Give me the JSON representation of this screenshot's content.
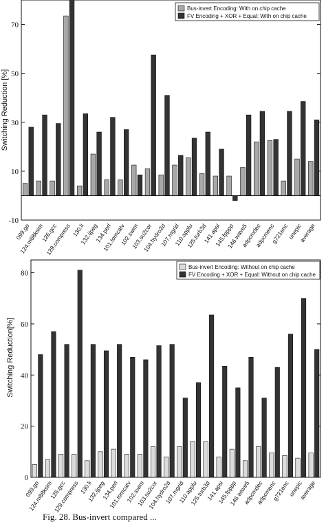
{
  "figure": {
    "caption": "Fig. 28. Bus-invert compared ..."
  },
  "chart_data": [
    {
      "type": "bar",
      "title": "",
      "xlabel": "",
      "ylabel": "Switching Reduction [%]",
      "ylim": [
        -10,
        80
      ],
      "yticks": [
        -10,
        10,
        30,
        50,
        70
      ],
      "grid": false,
      "legend_position": "top-right",
      "categories": [
        "099.go",
        "124.m88ksim",
        "126.gcc",
        "129.compress",
        "130.li",
        "132.ijpeg",
        "134.perl",
        "101.tomcatv",
        "102.swim",
        "103.su2cor",
        "104.hydro2d",
        "107.mgrid",
        "110.applu",
        "125.turb3d",
        "141.apsi",
        "145.fpppp",
        "146.wave5",
        "adpcmdec",
        "adpcmenc",
        "g721enc",
        "unepic",
        "average"
      ],
      "series": [
        {
          "name": "Bus-invert Encoding: With on chip cache",
          "color": "#a8a8a8",
          "values": [
            5,
            6,
            6,
            73.5,
            4,
            17,
            6.5,
            6.5,
            12.5,
            11,
            8.5,
            12.5,
            15.5,
            9,
            8,
            8,
            11.5,
            22,
            22.5,
            6,
            15,
            14
          ]
        },
        {
          "name": "FV Encoding + XOR + Equal: With on chip cache",
          "color": "#333333",
          "values": [
            28,
            33,
            29.5,
            81,
            33.5,
            26,
            32,
            27,
            8.5,
            57.5,
            41,
            16.5,
            23.5,
            26,
            19,
            -2,
            33,
            34.5,
            23,
            34.5,
            38.5,
            31
          ]
        }
      ]
    },
    {
      "type": "bar",
      "title": "",
      "xlabel": "",
      "ylabel": "Switching Reduction[%]",
      "ylim": [
        0,
        85
      ],
      "yticks": [
        0,
        20,
        40,
        60,
        80
      ],
      "grid": false,
      "legend_position": "top-right",
      "categories": [
        "099.go",
        "124.m88ksim",
        "126.gcc",
        "129.compress",
        "130.li",
        "132.ijpeg",
        "134.perl",
        "101.tomcatv",
        "102.swim",
        "103.su2cor",
        "104.hydro2d",
        "107.mgrid",
        "110.applu",
        "125.turb3d",
        "141.apsi",
        "145.fpppp",
        "146.wave5",
        "adpcmdec",
        "adpcmenc",
        "g721enc",
        "unepic",
        "average"
      ],
      "series": [
        {
          "name": "Bus-invert Encoding: Without on chip cache",
          "color": "#dcdcdc",
          "values": [
            5,
            7,
            9,
            9,
            6.5,
            10,
            11,
            9,
            9,
            12,
            8,
            12,
            14,
            14,
            8,
            11,
            6.5,
            12,
            9.5,
            8.5,
            7.5,
            9.5
          ]
        },
        {
          "name": "FV Encoding + XOR + Equal: Without on chip cache",
          "color": "#333333",
          "values": [
            48,
            57,
            52,
            81,
            52,
            49.5,
            52,
            47,
            46,
            51.5,
            52,
            31,
            37,
            63.5,
            43.5,
            35,
            47,
            31,
            43,
            56,
            70,
            50
          ]
        }
      ]
    }
  ]
}
